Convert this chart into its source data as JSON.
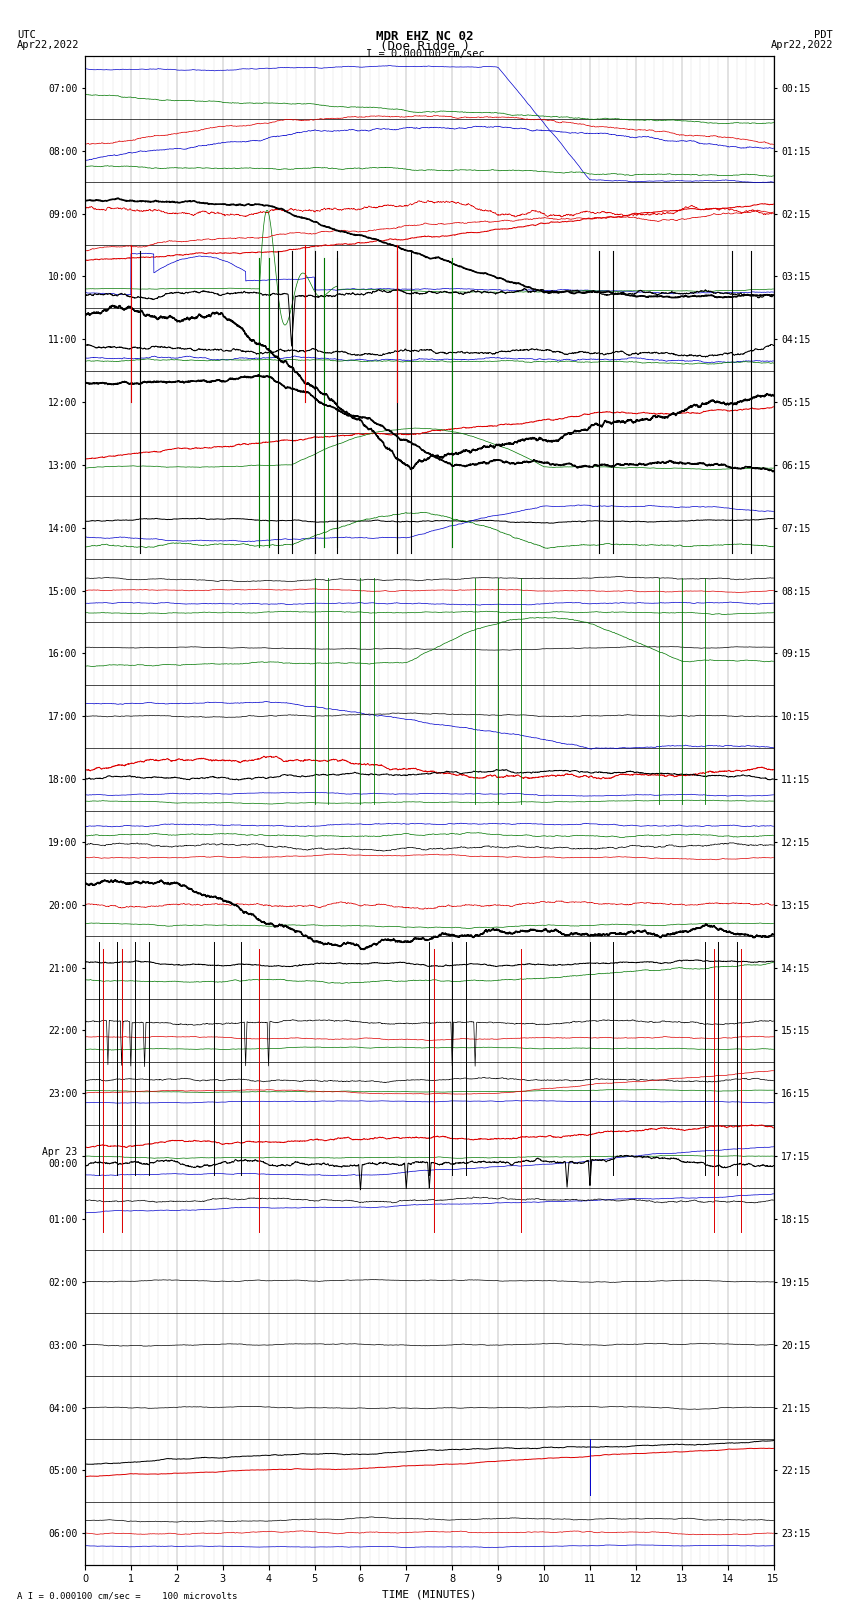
{
  "title_line1": "MDR EHZ NC 02",
  "title_line2": "(Doe Ridge )",
  "scale_label": "I = 0.000100 cm/sec",
  "utc_label": "UTC",
  "utc_date": "Apr22,2022",
  "pdt_label": "PDT",
  "pdt_date": "Apr22,2022",
  "bottom_label": "A I = 0.000100 cm/sec =    100 microvolts",
  "xlabel": "TIME (MINUTES)",
  "left_times": [
    "07:00",
    "08:00",
    "09:00",
    "10:00",
    "11:00",
    "12:00",
    "13:00",
    "14:00",
    "15:00",
    "16:00",
    "17:00",
    "18:00",
    "19:00",
    "20:00",
    "21:00",
    "22:00",
    "23:00",
    "Apr 23\n00:00",
    "01:00",
    "02:00",
    "03:00",
    "04:00",
    "05:00",
    "06:00"
  ],
  "right_times": [
    "00:15",
    "01:15",
    "02:15",
    "03:15",
    "04:15",
    "05:15",
    "06:15",
    "07:15",
    "08:15",
    "09:15",
    "10:15",
    "11:15",
    "12:15",
    "13:15",
    "14:15",
    "15:15",
    "16:15",
    "17:15",
    "18:15",
    "19:15",
    "20:15",
    "21:15",
    "22:15",
    "23:15"
  ],
  "n_rows": 24,
  "x_min": 0,
  "x_max": 15,
  "x_ticks": [
    0,
    1,
    2,
    3,
    4,
    5,
    6,
    7,
    8,
    9,
    10,
    11,
    12,
    13,
    14,
    15
  ],
  "bg_color": "#ffffff",
  "grid_major_color": "#000000",
  "grid_minor_color": "#aaaaaa",
  "colors": {
    "black": "#000000",
    "red": "#dd0000",
    "blue": "#0000cc",
    "green": "#007700"
  },
  "title_fontsize": 9,
  "tick_fontsize": 7,
  "label_fontsize": 8,
  "figsize": [
    8.5,
    16.13
  ]
}
